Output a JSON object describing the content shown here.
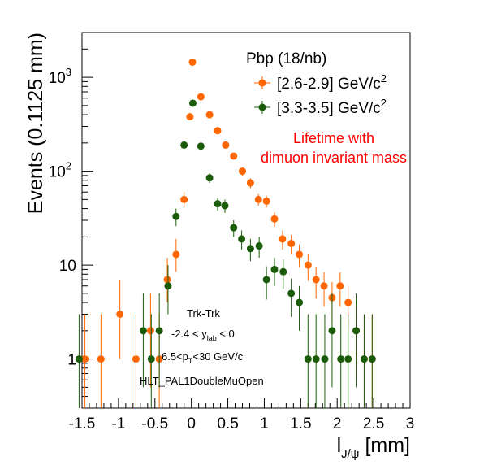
{
  "chart_data": {
    "type": "scatter",
    "title": "",
    "xlabel": "l",
    "xlabel_sub": "J/ψ",
    "xlabel_unit": " [mm]",
    "ylabel": "Events (0.1125 mm)",
    "xlim": [
      -1.5,
      3
    ],
    "ylim": [
      0.3,
      3000
    ],
    "yscale": "log",
    "x_ticks": [
      "-1.5",
      "-1",
      "-0.5",
      "0",
      "0.5",
      "1",
      "1.5",
      "2",
      "2.5",
      "3"
    ],
    "y_ticks": [
      "1",
      "10",
      "10",
      "10"
    ],
    "y_ticks_exp": [
      "",
      "",
      "2",
      "3"
    ],
    "grid": false,
    "legend": {
      "header": "Pbp (18/nb)",
      "placement": "top-right",
      "entries": [
        {
          "label": "[2.6-2.9] GeV/c",
          "sup": "2",
          "color": "#ff6600"
        },
        {
          "label": "[3.3-3.5] GeV/c",
          "sup": "2",
          "color": "#1a5c0a"
        }
      ]
    },
    "annotation_red": [
      "Lifetime with",
      "dimuon invariant mass"
    ],
    "notes": [
      {
        "text": "Trk-Trk"
      },
      {
        "pre": "-2.4 < y",
        "sub": "lab",
        "post": " < 0"
      },
      {
        "pre": "6.5<p",
        "sub": "T",
        "post": "<30 GeV/c"
      },
      {
        "text": "HLT_PAL1DoubleMuOpen"
      }
    ],
    "series": [
      {
        "name": "[2.6-2.9] GeV/c2",
        "color": "#ff6600",
        "points": [
          {
            "x": -1.46,
            "y": 1,
            "lo": 0.3,
            "hi": 3.0,
            "zero": true
          },
          {
            "x": -1.24,
            "y": 1,
            "lo": 0.3,
            "hi": 3.0,
            "zero": true
          },
          {
            "x": -0.98,
            "y": 3,
            "lo": 1.0,
            "hi": 7.0
          },
          {
            "x": -0.76,
            "y": 1,
            "lo": 0.3,
            "hi": 3.0,
            "zero": true
          },
          {
            "x": -0.56,
            "y": 2,
            "lo": 0.5,
            "hi": 5.0
          },
          {
            "x": -0.44,
            "y": 1,
            "lo": 0.3,
            "hi": 3.0,
            "zero": true
          },
          {
            "x": -0.33,
            "y": 7,
            "lo": 4.0,
            "hi": 12.0
          },
          {
            "x": -0.21,
            "y": 13,
            "lo": 8.5,
            "hi": 19.0
          },
          {
            "x": -0.1,
            "y": 50,
            "lo": 41.0,
            "hi": 60.0
          },
          {
            "x": -0.02,
            "y": 380,
            "lo": 355.0,
            "hi": 405.0
          },
          {
            "x": 0.015,
            "y": 1450,
            "lo": 1400.0,
            "hi": 1500.0
          },
          {
            "x": 0.13,
            "y": 620,
            "lo": 595.0,
            "hi": 645.0
          },
          {
            "x": 0.25,
            "y": 400,
            "lo": 380.0,
            "hi": 420.0
          },
          {
            "x": 0.36,
            "y": 270,
            "lo": 254.0,
            "hi": 286.0
          },
          {
            "x": 0.47,
            "y": 190,
            "lo": 176.0,
            "hi": 204.0
          },
          {
            "x": 0.58,
            "y": 145,
            "lo": 133.0,
            "hi": 157.0
          },
          {
            "x": 0.7,
            "y": 100,
            "lo": 90.0,
            "hi": 110.0
          },
          {
            "x": 0.81,
            "y": 75,
            "lo": 66.0,
            "hi": 84.0
          },
          {
            "x": 0.92,
            "y": 50,
            "lo": 43.0,
            "hi": 57.0
          },
          {
            "x": 1.03,
            "y": 48,
            "lo": 41.0,
            "hi": 55.0
          },
          {
            "x": 1.14,
            "y": 31,
            "lo": 25.5,
            "hi": 36.5
          },
          {
            "x": 1.25,
            "y": 19,
            "lo": 14.6,
            "hi": 23.4
          },
          {
            "x": 1.37,
            "y": 17,
            "lo": 13.0,
            "hi": 21.0
          },
          {
            "x": 1.48,
            "y": 13,
            "lo": 9.4,
            "hi": 16.6
          },
          {
            "x": 1.6,
            "y": 10,
            "lo": 6.8,
            "hi": 13.2
          },
          {
            "x": 1.71,
            "y": 7,
            "lo": 4.4,
            "hi": 9.6
          },
          {
            "x": 1.82,
            "y": 6,
            "lo": 3.6,
            "hi": 8.4
          },
          {
            "x": 1.93,
            "y": 4.5,
            "lo": 2.4,
            "hi": 6.6
          },
          {
            "x": 2.04,
            "y": 6,
            "lo": 3.6,
            "hi": 8.4
          },
          {
            "x": 2.15,
            "y": 4,
            "lo": 2.0,
            "hi": 6.0
          },
          {
            "x": 2.26,
            "y": 2,
            "lo": 0.6,
            "hi": 4.6
          },
          {
            "x": 2.37,
            "y": 1,
            "lo": 0.3,
            "hi": 3.0,
            "zero": true
          },
          {
            "x": 2.48,
            "y": 1,
            "lo": 0.3,
            "hi": 3.0,
            "zero": true
          }
        ]
      },
      {
        "name": "[3.3-3.5] GeV/c2",
        "color": "#1a5c0a",
        "points": [
          {
            "x": -1.54,
            "y": 1,
            "lo": 0.3,
            "hi": 3.0,
            "zero": true
          },
          {
            "x": -0.66,
            "y": 2,
            "lo": 0.5,
            "hi": 5.0
          },
          {
            "x": -0.55,
            "y": 1,
            "lo": 0.3,
            "hi": 3.0,
            "zero": true
          },
          {
            "x": -0.44,
            "y": 2,
            "lo": 0.5,
            "hi": 5.0
          },
          {
            "x": -0.32,
            "y": 6,
            "lo": 3.0,
            "hi": 10.0
          },
          {
            "x": -0.21,
            "y": 33,
            "lo": 26.0,
            "hi": 40.0
          },
          {
            "x": -0.1,
            "y": 190,
            "lo": 175.0,
            "hi": 205.0
          },
          {
            "x": 0.02,
            "y": 530,
            "lo": 505.0,
            "hi": 555.0
          },
          {
            "x": 0.13,
            "y": 185,
            "lo": 170.0,
            "hi": 200.0
          },
          {
            "x": 0.25,
            "y": 85,
            "lo": 75.0,
            "hi": 95.0
          },
          {
            "x": 0.36,
            "y": 45,
            "lo": 38.0,
            "hi": 52.0
          },
          {
            "x": 0.46,
            "y": 43,
            "lo": 36.0,
            "hi": 50.0
          },
          {
            "x": 0.58,
            "y": 25,
            "lo": 20.0,
            "hi": 30.0
          },
          {
            "x": 0.69,
            "y": 19,
            "lo": 14.6,
            "hi": 23.4
          },
          {
            "x": 0.81,
            "y": 15,
            "lo": 11.0,
            "hi": 19.0
          },
          {
            "x": 0.93,
            "y": 16,
            "lo": 12.0,
            "hi": 20.0
          },
          {
            "x": 1.03,
            "y": 7,
            "lo": 4.3,
            "hi": 9.7
          },
          {
            "x": 1.14,
            "y": 9,
            "lo": 6.0,
            "hi": 12.0
          },
          {
            "x": 1.26,
            "y": 8.5,
            "lo": 5.6,
            "hi": 11.4
          },
          {
            "x": 1.37,
            "y": 5,
            "lo": 2.8,
            "hi": 7.2
          },
          {
            "x": 1.48,
            "y": 4,
            "lo": 2.0,
            "hi": 6.0
          },
          {
            "x": 1.6,
            "y": 1,
            "lo": 0.3,
            "hi": 3.0,
            "zero": true
          },
          {
            "x": 1.71,
            "y": 1,
            "lo": 0.3,
            "hi": 3.0,
            "zero": true
          },
          {
            "x": 1.83,
            "y": 1,
            "lo": 0.3,
            "hi": 3.0,
            "zero": true
          },
          {
            "x": 1.93,
            "y": 2,
            "lo": 0.5,
            "hi": 5.0
          },
          {
            "x": 2.05,
            "y": 1,
            "lo": 0.3,
            "hi": 3.0,
            "zero": true
          },
          {
            "x": 2.15,
            "y": 1,
            "lo": 0.3,
            "hi": 3.0,
            "zero": true
          },
          {
            "x": 2.26,
            "y": 2,
            "lo": 0.5,
            "hi": 5.0
          },
          {
            "x": 2.37,
            "y": 1,
            "lo": 0.3,
            "hi": 3.0,
            "zero": true
          },
          {
            "x": 2.48,
            "y": 1,
            "lo": 0.3,
            "hi": 3.0,
            "zero": true
          }
        ]
      }
    ]
  }
}
